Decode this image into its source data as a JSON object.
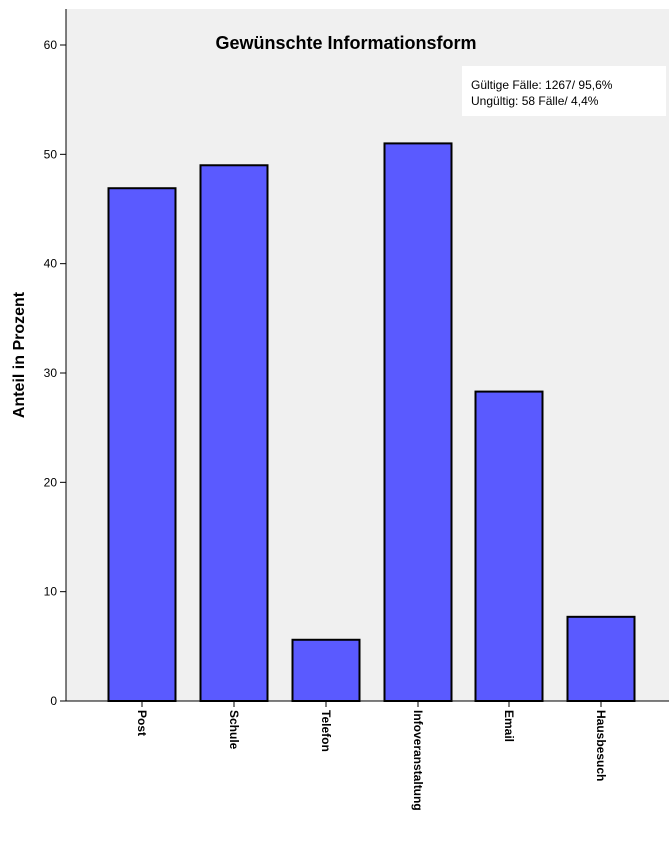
{
  "chart_data": {
    "type": "bar",
    "title": "Gewünschte Informationsform",
    "ylabel": "Anteil in Prozent",
    "xlabel": "",
    "ylim": [
      0,
      60
    ],
    "yticks": [
      "0",
      "10",
      "20",
      "30",
      "40",
      "50",
      "60"
    ],
    "categories": [
      "Post",
      "Schule",
      "Telefon",
      "Infoveranstaltung",
      "Email",
      "Hausbesuch"
    ],
    "values": [
      46.9,
      49.0,
      5.6,
      51.0,
      28.3,
      7.7
    ],
    "note_lines": [
      "Gültige Fälle: 1267/ 95,6%",
      "Ungültig: 58 Fälle/ 4,4%"
    ],
    "grid": false,
    "colors": {
      "bar": "#5a5aff",
      "plot_background": "#f0f0f0",
      "bar_outline": "#000000"
    }
  }
}
